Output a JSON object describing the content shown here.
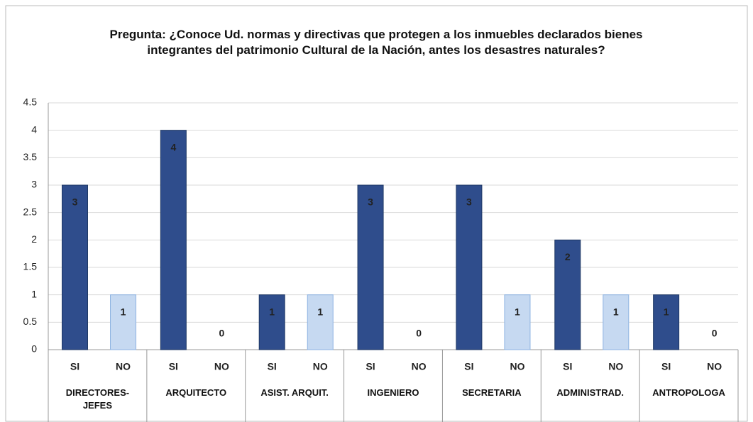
{
  "chart_data": {
    "type": "bar",
    "title": "Pregunta: ¿Conoce Ud. normas y directivas que protegen a los inmuebles declarados bienes integrantes del patrimonio Cultural de la Nación, antes los desastres naturales?",
    "categories": [
      "DIRECTORES-JEFES",
      "ARQUITECTO",
      "ASIST. ARQUIT.",
      "INGENIERO",
      "SECRETARIA",
      "ADMINISTRAD.",
      "ANTROPOLOGA"
    ],
    "series": [
      {
        "name": "SI",
        "color": "#2f4d8c",
        "values": [
          3,
          4,
          1,
          3,
          3,
          2,
          1
        ]
      },
      {
        "name": "NO",
        "color": "#c6d9f1",
        "values": [
          1,
          0,
          1,
          0,
          1,
          1,
          0
        ]
      }
    ],
    "ylim": [
      0,
      4.5
    ],
    "yticks": [
      0,
      0.5,
      1,
      1.5,
      2,
      2.5,
      3,
      3.5,
      4,
      4.5
    ],
    "grid": true
  }
}
